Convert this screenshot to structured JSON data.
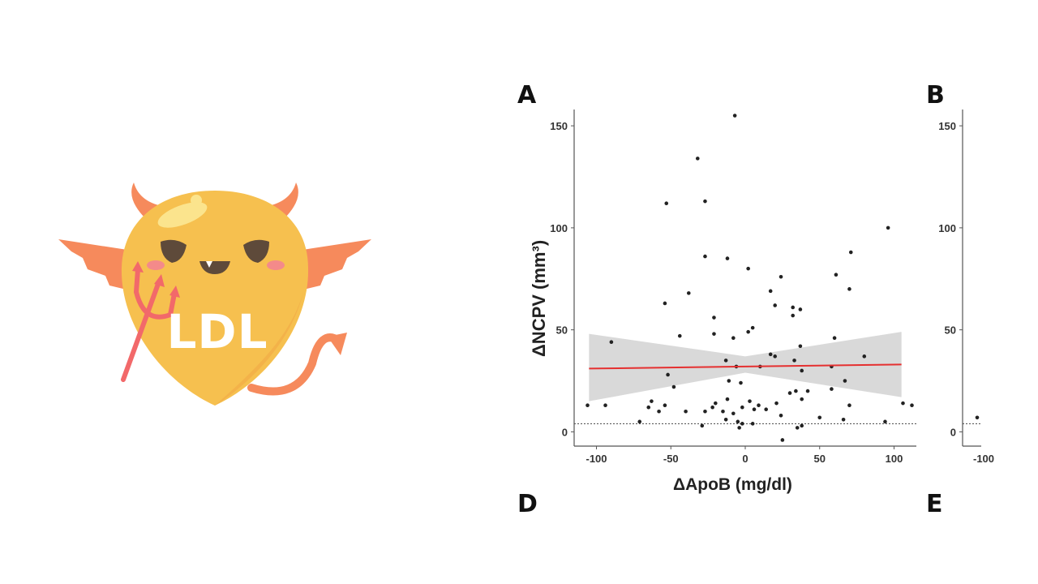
{
  "mascot": {
    "label": "LDL",
    "colors": {
      "body": "#f6c04f",
      "wings": "#f68a5c",
      "trident": "#f2696a",
      "face": "#5e4a3a",
      "cheeks": "#f48a8a"
    }
  },
  "panels": {
    "a": "A",
    "b": "B",
    "d": "D",
    "e": "E"
  },
  "chart_data": [
    {
      "panel": "A",
      "type": "scatter",
      "xlabel": "ΔApoB (mg/dl)",
      "ylabel": "ΔNCPV (mm³)",
      "xlim": [
        -115,
        115
      ],
      "ylim": [
        -7,
        158
      ],
      "xticks": [
        -100,
        -50,
        0,
        50,
        100
      ],
      "yticks": [
        0,
        50,
        100,
        150
      ],
      "reference_line_y": 4,
      "regression": {
        "x": [
          -105,
          105
        ],
        "y": [
          31,
          33
        ],
        "color": "#e53030"
      },
      "confidence_band": {
        "x": [
          -105,
          0,
          105
        ],
        "upper": [
          48,
          37,
          49
        ],
        "lower": [
          15,
          29,
          17
        ],
        "color": "#d9d9d9"
      },
      "points": [
        [
          -7,
          155
        ],
        [
          -32,
          134
        ],
        [
          -27,
          113
        ],
        [
          -53,
          112
        ],
        [
          96,
          100
        ],
        [
          71,
          88
        ],
        [
          61,
          77
        ],
        [
          -27,
          86
        ],
        [
          -12,
          85
        ],
        [
          2,
          80
        ],
        [
          24,
          76
        ],
        [
          70,
          70
        ],
        [
          -38,
          68
        ],
        [
          17,
          69
        ],
        [
          -54,
          63
        ],
        [
          20,
          62
        ],
        [
          32,
          61
        ],
        [
          32,
          57
        ],
        [
          37,
          60
        ],
        [
          -21,
          56
        ],
        [
          5,
          51
        ],
        [
          2,
          49
        ],
        [
          -21,
          48
        ],
        [
          -44,
          47
        ],
        [
          -8,
          46
        ],
        [
          37,
          42
        ],
        [
          60,
          46
        ],
        [
          -90,
          44
        ],
        [
          -13,
          35
        ],
        [
          -6,
          32
        ],
        [
          10,
          32
        ],
        [
          17,
          38
        ],
        [
          20,
          37
        ],
        [
          33,
          35
        ],
        [
          80,
          37
        ],
        [
          38,
          30
        ],
        [
          58,
          32
        ],
        [
          -52,
          28
        ],
        [
          67,
          25
        ],
        [
          -48,
          22
        ],
        [
          -11,
          25
        ],
        [
          -3,
          24
        ],
        [
          34,
          20
        ],
        [
          42,
          20
        ],
        [
          30,
          19
        ],
        [
          38,
          16
        ],
        [
          58,
          21
        ],
        [
          -106,
          13
        ],
        [
          -94,
          13
        ],
        [
          -71,
          5
        ],
        [
          -63,
          15
        ],
        [
          -54,
          13
        ],
        [
          -65,
          12
        ],
        [
          -58,
          10
        ],
        [
          -40,
          10
        ],
        [
          -29,
          3
        ],
        [
          -20,
          14
        ],
        [
          -15,
          10
        ],
        [
          -8,
          9
        ],
        [
          -2,
          12
        ],
        [
          3,
          15
        ],
        [
          6,
          11
        ],
        [
          9,
          13
        ],
        [
          -13,
          6
        ],
        [
          -5,
          5
        ],
        [
          -2,
          4
        ],
        [
          5,
          4
        ],
        [
          -12,
          16
        ],
        [
          14,
          11
        ],
        [
          24,
          8
        ],
        [
          21,
          14
        ],
        [
          -4,
          2
        ],
        [
          25,
          -4
        ],
        [
          35,
          2
        ],
        [
          38,
          3
        ],
        [
          50,
          7
        ],
        [
          66,
          6
        ],
        [
          70,
          13
        ],
        [
          106,
          14
        ],
        [
          112,
          13
        ],
        [
          94,
          5
        ],
        [
          -22,
          12
        ],
        [
          -27,
          10
        ]
      ]
    },
    {
      "panel": "B",
      "type": "scatter",
      "ylim": [
        -7,
        158
      ],
      "yticks": [
        0,
        50,
        100,
        150
      ],
      "xticks": [
        -100
      ],
      "points": [
        [
          -100,
          7
        ]
      ]
    }
  ]
}
